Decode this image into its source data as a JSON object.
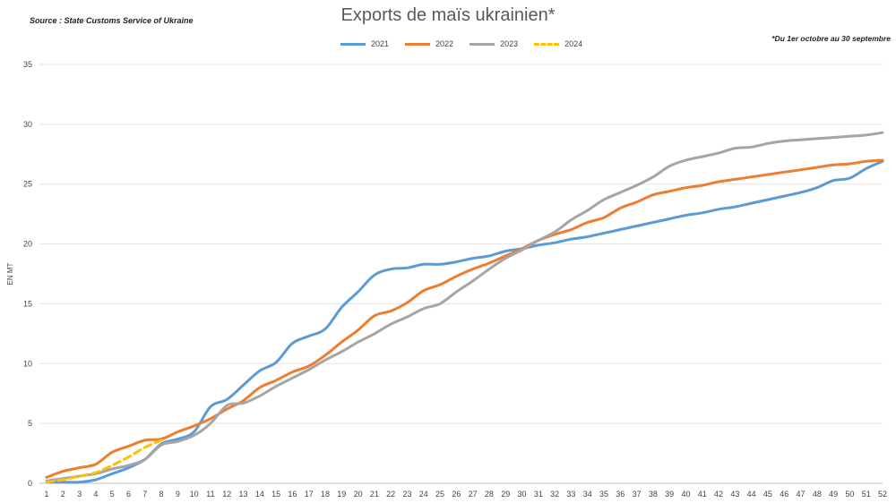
{
  "header": {
    "source": "Source : State Customs Service of Ukraine",
    "title": "Exports de maïs ukrainien*",
    "note": "*Du 1er octobre au 30 septembre"
  },
  "chart_data": {
    "type": "line",
    "title": "Exports de maïs ukrainien*",
    "xlabel": "",
    "ylabel": "EN MT",
    "ylim": [
      0,
      35
    ],
    "yticks": [
      0,
      5,
      10,
      15,
      20,
      25,
      30,
      35
    ],
    "grid": true,
    "legend_position": "top-center",
    "x": [
      1,
      2,
      3,
      4,
      5,
      6,
      7,
      8,
      9,
      10,
      11,
      12,
      13,
      14,
      15,
      16,
      17,
      18,
      19,
      20,
      21,
      22,
      23,
      24,
      25,
      26,
      27,
      28,
      29,
      30,
      31,
      32,
      33,
      34,
      35,
      36,
      37,
      38,
      39,
      40,
      41,
      42,
      43,
      44,
      45,
      46,
      47,
      48,
      49,
      50,
      51,
      52
    ],
    "series": [
      {
        "name": "2021",
        "color": "#5b9bd5",
        "dashed": false,
        "values": [
          0.1,
          0.1,
          0.1,
          0.3,
          0.8,
          1.3,
          2.0,
          3.3,
          3.7,
          4.3,
          6.4,
          7.0,
          8.2,
          9.4,
          10.1,
          11.7,
          12.3,
          12.9,
          14.7,
          16.0,
          17.4,
          17.9,
          18.0,
          18.3,
          18.3,
          18.5,
          18.8,
          19.0,
          19.4,
          19.6,
          19.9,
          20.1,
          20.4,
          20.6,
          20.9,
          21.2,
          21.5,
          21.8,
          22.1,
          22.4,
          22.6,
          22.9,
          23.1,
          23.4,
          23.7,
          24.0,
          24.3,
          24.7,
          25.3,
          25.5,
          26.3,
          26.9
        ]
      },
      {
        "name": "2022",
        "color": "#ed7d31",
        "dashed": false,
        "values": [
          0.5,
          1.0,
          1.3,
          1.6,
          2.6,
          3.1,
          3.6,
          3.7,
          4.3,
          4.8,
          5.4,
          6.2,
          6.9,
          8.0,
          8.6,
          9.3,
          9.8,
          10.7,
          11.8,
          12.8,
          14.0,
          14.4,
          15.1,
          16.1,
          16.6,
          17.3,
          17.9,
          18.4,
          19.0,
          19.6,
          20.3,
          20.8,
          21.2,
          21.8,
          22.2,
          23.0,
          23.5,
          24.1,
          24.4,
          24.7,
          24.9,
          25.2,
          25.4,
          25.6,
          25.8,
          26.0,
          26.2,
          26.4,
          26.6,
          26.7,
          26.9,
          27.0
        ]
      },
      {
        "name": "2023",
        "color": "#a5a5a5",
        "dashed": false,
        "values": [
          0.2,
          0.4,
          0.6,
          0.8,
          1.2,
          1.5,
          2.0,
          3.2,
          3.5,
          4.0,
          5.0,
          6.5,
          6.7,
          7.3,
          8.1,
          8.8,
          9.5,
          10.3,
          11.0,
          11.8,
          12.5,
          13.3,
          13.9,
          14.6,
          15.0,
          16.0,
          16.9,
          17.9,
          18.8,
          19.5,
          20.3,
          21.0,
          22.0,
          22.8,
          23.7,
          24.3,
          24.9,
          25.6,
          26.5,
          27.0,
          27.3,
          27.6,
          28.0,
          28.1,
          28.4,
          28.6,
          28.7,
          28.8,
          28.9,
          29.0,
          29.1,
          29.3
        ]
      },
      {
        "name": "2024",
        "color": "#ffc000",
        "dashed": true,
        "values": [
          0.1,
          0.3,
          0.6,
          0.9,
          1.5,
          2.2,
          3.0,
          3.6,
          null,
          null,
          null,
          null,
          null,
          null,
          null,
          null,
          null,
          null,
          null,
          null,
          null,
          null,
          null,
          null,
          null,
          null,
          null,
          null,
          null,
          null,
          null,
          null,
          null,
          null,
          null,
          null,
          null,
          null,
          null,
          null,
          null,
          null,
          null,
          null,
          null,
          null,
          null,
          null,
          null,
          null,
          null,
          null
        ]
      }
    ]
  }
}
